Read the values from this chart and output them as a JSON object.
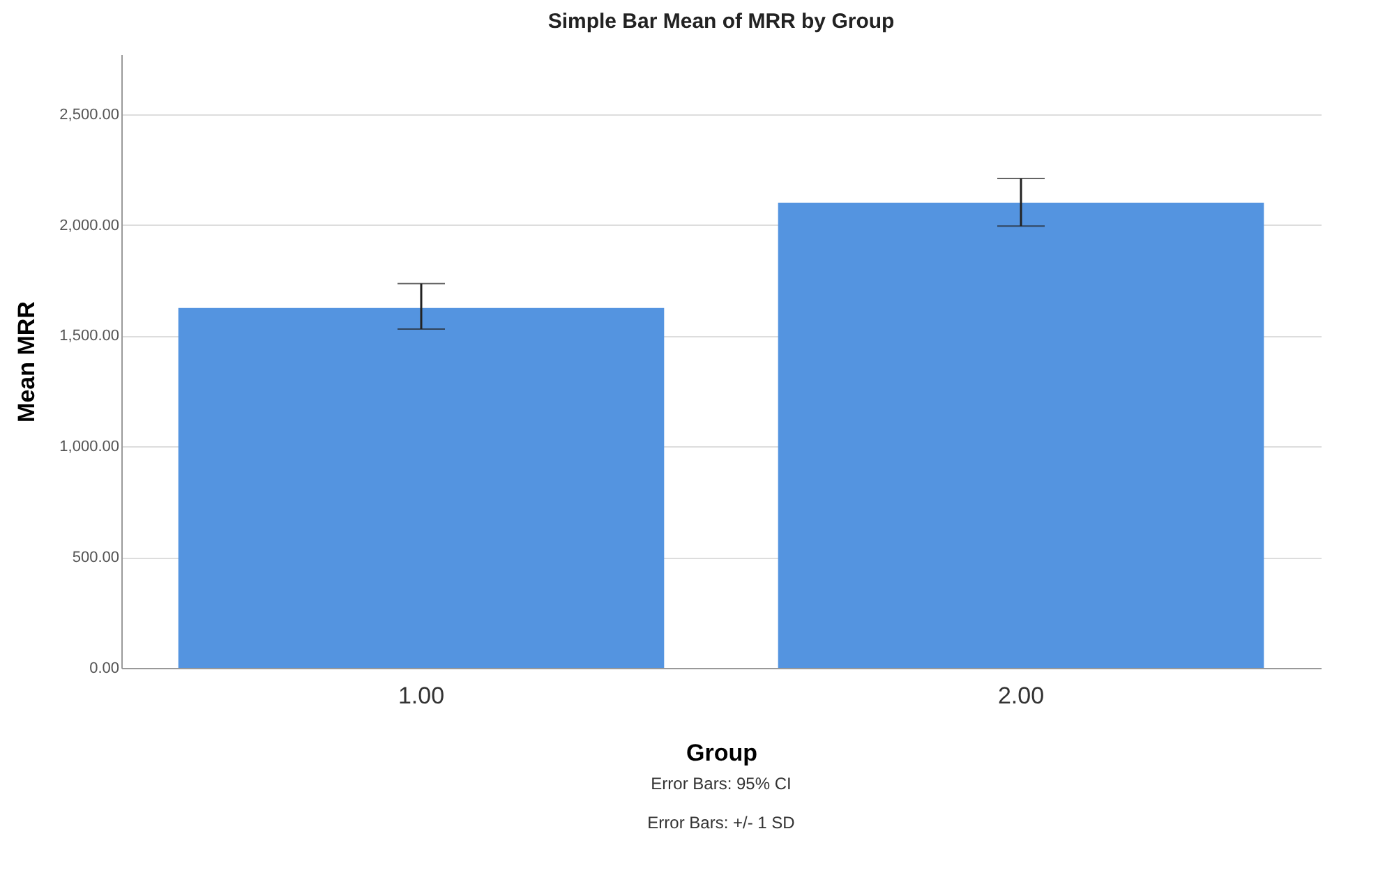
{
  "chart_data": {
    "type": "bar",
    "title": "Simple Bar Mean of MRR by Group",
    "xlabel": "Group",
    "ylabel": "Mean MRR",
    "categories": [
      "1.00",
      "2.00"
    ],
    "values": [
      1625,
      2100
    ],
    "errors": [
      [
        1530,
        1735
      ],
      [
        1995,
        2210
      ]
    ],
    "color": "#5494e0",
    "ylim": [
      0,
      2770
    ],
    "yticks": [
      {
        "value": 0,
        "label": "0.00"
      },
      {
        "value": 500,
        "label": "500.00"
      },
      {
        "value": 1000,
        "label": "1,000.00"
      },
      {
        "value": 1500,
        "label": "1,500.00"
      },
      {
        "value": 2000,
        "label": "2,000.00"
      },
      {
        "value": 2500,
        "label": "2,500.00"
      }
    ],
    "grid": "y",
    "annotations": [
      "Error Bars: 95% CI",
      "Error Bars: +/- 1 SD"
    ]
  }
}
